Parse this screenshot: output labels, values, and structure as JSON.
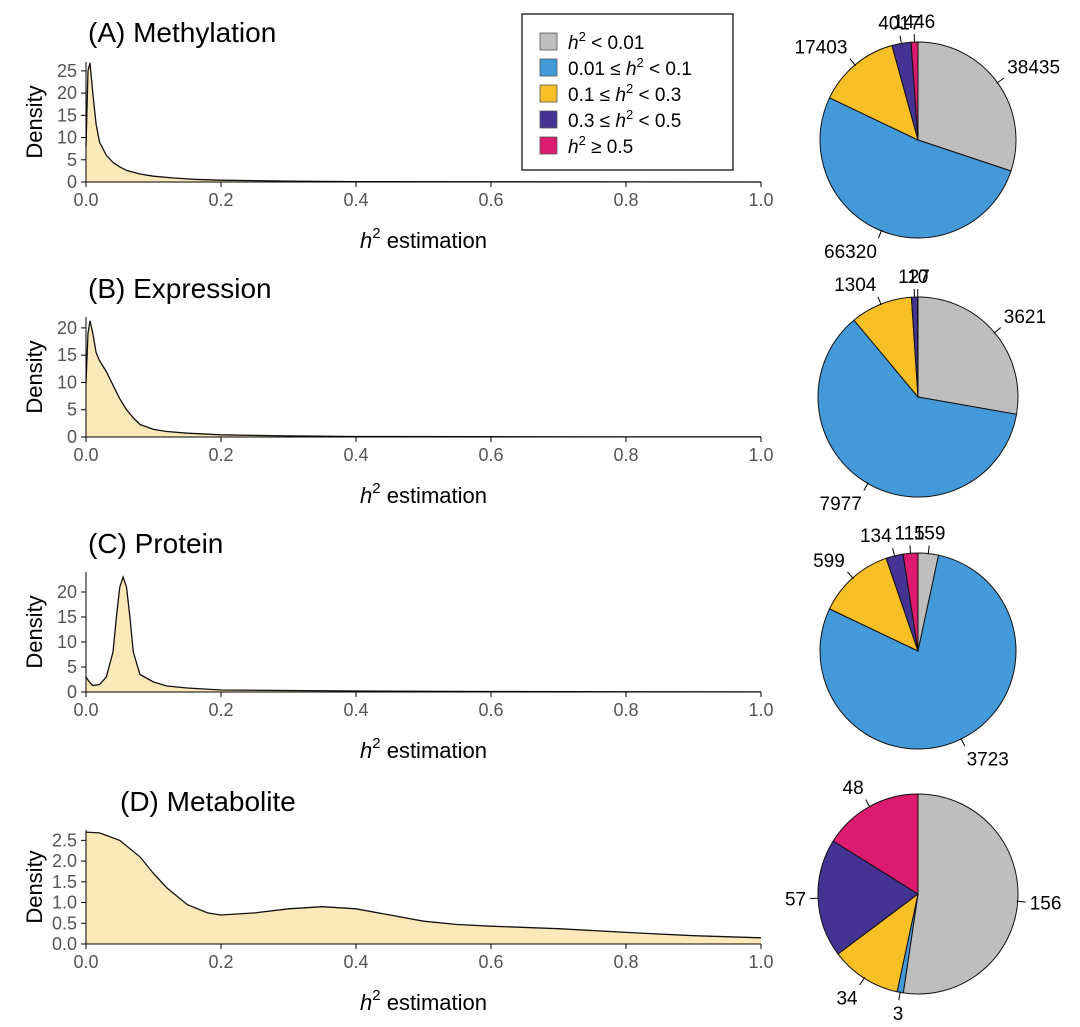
{
  "legend": {
    "items": [
      {
        "pre": "",
        "sup": "2",
        "post": " < 0.01",
        "color": "#BEBEBE"
      },
      {
        "pre": "0.01 ≤ ",
        "sup": "2",
        "post": " < 0.1",
        "color": "#4499D8"
      },
      {
        "pre": "0.1 ≤ ",
        "sup": "2",
        "post": " < 0.3",
        "color": "#F8BF27"
      },
      {
        "pre": "0.3 ≤ ",
        "sup": "2",
        "post": " < 0.5",
        "color": "#453394"
      },
      {
        "pre": "",
        "sup": "2",
        "post": " ≥ 0.5",
        "color": "#DC1A6F"
      }
    ]
  },
  "fill_color": "#FDE8B9",
  "chart_data": [
    {
      "type": "area",
      "title": "(A) Methylation",
      "xlabel": "h² estimation",
      "xlabel_base": "h",
      "xlabel_sup": "2",
      "xlabel_rest": " estimation",
      "ylabel": "Density",
      "xlim": [
        0,
        1
      ],
      "ylim": [
        0,
        27
      ],
      "xticks": [
        0,
        0.2,
        0.4,
        0.6,
        0.8,
        1.0
      ],
      "xtick_labels": [
        "0.0",
        "0.2",
        "0.4",
        "0.6",
        "0.8",
        "1.0"
      ],
      "yticks": [
        0,
        5,
        10,
        15,
        20,
        25
      ],
      "ytick_labels": [
        "0",
        "5",
        "10",
        "15",
        "20",
        "25"
      ],
      "x": [
        0,
        0.003,
        0.006,
        0.01,
        0.015,
        0.02,
        0.03,
        0.04,
        0.05,
        0.06,
        0.08,
        0.1,
        0.13,
        0.16,
        0.2,
        0.3,
        0.4,
        0.6,
        0.8,
        1.0
      ],
      "y": [
        8,
        25,
        26.8,
        20,
        13,
        9,
        6,
        4.4,
        3.4,
        2.6,
        1.8,
        1.3,
        0.9,
        0.6,
        0.4,
        0.2,
        0.1,
        0.04,
        0.02,
        0.01
      ],
      "pie": {
        "values": [
          38435,
          66320,
          17403,
          4017,
          1446
        ],
        "labels": [
          "38435",
          "66320",
          "17403",
          "4017",
          "1446"
        ]
      }
    },
    {
      "type": "area",
      "title": "(B) Expression",
      "xlabel": "h² estimation",
      "xlabel_base": "h",
      "xlabel_sup": "2",
      "xlabel_rest": " estimation",
      "ylabel": "Density",
      "xlim": [
        0,
        1
      ],
      "ylim": [
        0,
        22
      ],
      "xticks": [
        0,
        0.2,
        0.4,
        0.6,
        0.8,
        1.0
      ],
      "xtick_labels": [
        "0.0",
        "0.2",
        "0.4",
        "0.6",
        "0.8",
        "1.0"
      ],
      "yticks": [
        0,
        5,
        10,
        15,
        20
      ],
      "ytick_labels": [
        "0",
        "5",
        "10",
        "15",
        "20"
      ],
      "x": [
        0,
        0.003,
        0.006,
        0.01,
        0.015,
        0.02,
        0.03,
        0.04,
        0.05,
        0.06,
        0.07,
        0.08,
        0.1,
        0.12,
        0.15,
        0.2,
        0.25,
        0.3,
        0.4,
        0.6,
        0.8,
        1.0
      ],
      "y": [
        10,
        19,
        21.3,
        19,
        15.5,
        14,
        12,
        9.5,
        7,
        5,
        3.5,
        2.3,
        1.4,
        1.0,
        0.7,
        0.4,
        0.3,
        0.2,
        0.1,
        0.05,
        0.02,
        0.01
      ],
      "pie": {
        "values": [
          3621,
          7977,
          1304,
          127,
          10
        ],
        "labels": [
          "3621",
          "7977",
          "1304",
          "127",
          "10"
        ]
      }
    },
    {
      "type": "area",
      "title": "(C) Protein",
      "xlabel": "h² estimation",
      "xlabel_base": "h",
      "xlabel_sup": "2",
      "xlabel_rest": " estimation",
      "ylabel": "Density",
      "xlim": [
        0,
        1
      ],
      "ylim": [
        0,
        24
      ],
      "xticks": [
        0,
        0.2,
        0.4,
        0.6,
        0.8,
        1.0
      ],
      "xtick_labels": [
        "0.0",
        "0.2",
        "0.4",
        "0.6",
        "0.8",
        "1.0"
      ],
      "yticks": [
        0,
        5,
        10,
        15,
        20
      ],
      "ytick_labels": [
        "0",
        "5",
        "10",
        "15",
        "20"
      ],
      "x": [
        0,
        0.005,
        0.01,
        0.02,
        0.03,
        0.04,
        0.045,
        0.05,
        0.055,
        0.06,
        0.065,
        0.07,
        0.08,
        0.1,
        0.12,
        0.15,
        0.2,
        0.3,
        0.4,
        0.6,
        0.8,
        1.0
      ],
      "y": [
        3,
        2,
        1.3,
        1.5,
        3,
        8,
        15,
        21,
        23,
        21,
        15,
        8,
        3.5,
        2,
        1.2,
        0.8,
        0.4,
        0.3,
        0.2,
        0.1,
        0.05,
        0.02
      ],
      "pie": {
        "values": [
          159,
          3723,
          599,
          134,
          115
        ],
        "labels": [
          "159",
          "3723",
          "599",
          "134",
          "115"
        ]
      }
    },
    {
      "type": "area",
      "title": "(D) Metabolite",
      "xlabel": "h² estimation",
      "xlabel_base": "h",
      "xlabel_sup": "2",
      "xlabel_rest": " estimation",
      "ylabel": "Density",
      "xlim": [
        0,
        1
      ],
      "ylim": [
        0,
        2.75
      ],
      "xticks": [
        0,
        0.2,
        0.4,
        0.6,
        0.8,
        1.0
      ],
      "xtick_labels": [
        "0.0",
        "0.2",
        "0.4",
        "0.6",
        "0.8",
        "1.0"
      ],
      "yticks": [
        0,
        0.5,
        1.0,
        1.5,
        2.0,
        2.5
      ],
      "ytick_labels": [
        "0.0",
        "0.5",
        "1.0",
        "1.5",
        "2.0",
        "2.5"
      ],
      "x": [
        0,
        0.02,
        0.05,
        0.08,
        0.1,
        0.12,
        0.15,
        0.18,
        0.2,
        0.25,
        0.3,
        0.35,
        0.4,
        0.45,
        0.5,
        0.55,
        0.6,
        0.7,
        0.8,
        0.9,
        1.0
      ],
      "y": [
        2.7,
        2.68,
        2.5,
        2.1,
        1.7,
        1.35,
        0.95,
        0.75,
        0.7,
        0.75,
        0.85,
        0.9,
        0.85,
        0.7,
        0.55,
        0.47,
        0.43,
        0.37,
        0.28,
        0.2,
        0.15
      ],
      "pie": {
        "values": [
          156,
          3,
          34,
          57,
          48
        ],
        "labels": [
          "156",
          "3",
          "34",
          "57",
          "48"
        ]
      }
    }
  ]
}
